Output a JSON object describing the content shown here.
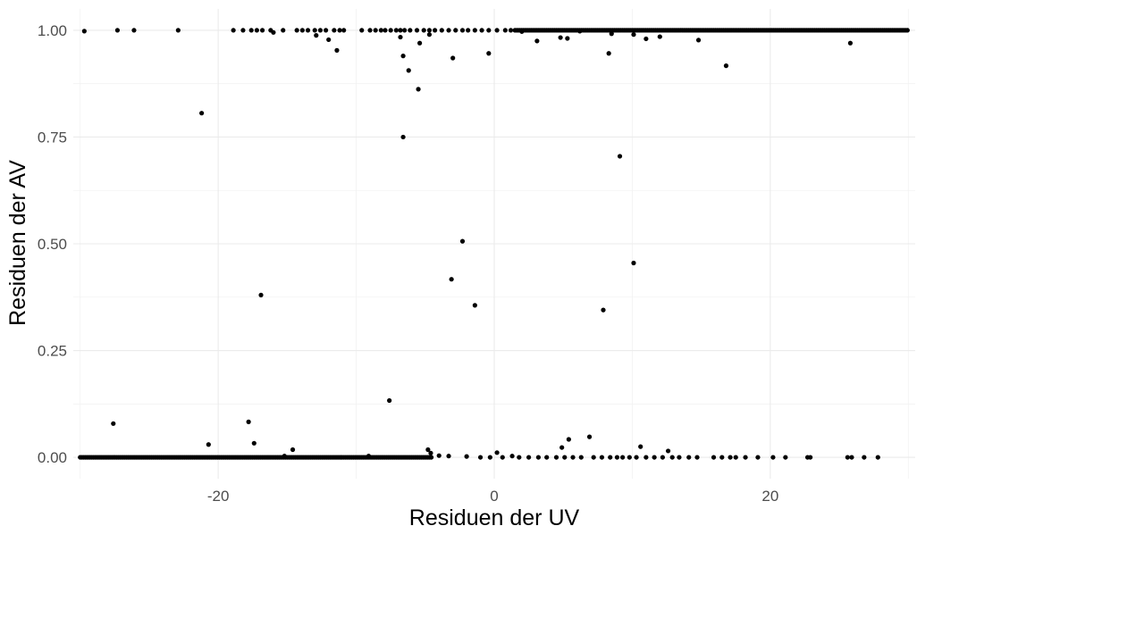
{
  "chart_data": {
    "type": "scatter",
    "title": "",
    "xlabel": "Residuen der UV",
    "ylabel": "Residuen der AV",
    "xlim": [
      -30.5,
      30.5
    ],
    "ylim": [
      -0.05,
      1.05
    ],
    "x_ticks": [
      -20,
      0,
      20
    ],
    "x_tick_labels": [
      "-20",
      "0",
      "20"
    ],
    "y_ticks": [
      0,
      0.25,
      0.5,
      0.75,
      1
    ],
    "y_tick_labels": [
      "0.00",
      "0.25",
      "0.50",
      "0.75",
      "1.00"
    ],
    "grid": true,
    "theme": "minimal",
    "point_color": "#000000",
    "dense_bands": [
      {
        "y": 0,
        "x_from": -30,
        "x_to": -4.5
      },
      {
        "y": 1,
        "x_from": 1.5,
        "x_to": 30
      }
    ],
    "points": [
      [
        -29.7,
        0.998
      ],
      [
        -27.3,
        1.0
      ],
      [
        -26.1,
        1.0
      ],
      [
        -22.9,
        1.0
      ],
      [
        -18.9,
        1.0
      ],
      [
        -18.2,
        1.0
      ],
      [
        -17.6,
        1.0
      ],
      [
        -17.2,
        1.0
      ],
      [
        -16.8,
        1.0
      ],
      [
        -16.2,
        1.0
      ],
      [
        -16.0,
        0.995
      ],
      [
        -15.3,
        1.0
      ],
      [
        -14.3,
        1.0
      ],
      [
        -13.9,
        1.0
      ],
      [
        -13.5,
        1.0
      ],
      [
        -13.0,
        1.0
      ],
      [
        -12.6,
        1.0
      ],
      [
        -12.2,
        1.0
      ],
      [
        -11.6,
        1.0
      ],
      [
        -11.2,
        1.0
      ],
      [
        -10.9,
        1.0
      ],
      [
        -9.6,
        1.0
      ],
      [
        -9.0,
        1.0
      ],
      [
        -8.6,
        1.0
      ],
      [
        -8.2,
        1.0
      ],
      [
        -7.9,
        1.0
      ],
      [
        -7.5,
        1.0
      ],
      [
        -7.1,
        1.0
      ],
      [
        -6.8,
        1.0
      ],
      [
        -6.5,
        1.0
      ],
      [
        -6.1,
        1.0
      ],
      [
        -5.6,
        1.0
      ],
      [
        -5.1,
        1.0
      ],
      [
        -4.7,
        1.0
      ],
      [
        -4.3,
        1.0
      ],
      [
        -3.8,
        1.0
      ],
      [
        -3.3,
        1.0
      ],
      [
        -2.8,
        1.0
      ],
      [
        -2.3,
        1.0
      ],
      [
        -1.9,
        1.0
      ],
      [
        -1.4,
        1.0
      ],
      [
        -0.9,
        1.0
      ],
      [
        -0.4,
        1.0
      ],
      [
        0.2,
        1.0
      ],
      [
        0.8,
        1.0
      ],
      [
        1.2,
        1.0
      ],
      [
        -12.9,
        0.988
      ],
      [
        -12.0,
        0.978
      ],
      [
        -11.4,
        0.953
      ],
      [
        -6.8,
        0.984
      ],
      [
        -4.7,
        0.99
      ],
      [
        -5.4,
        0.97
      ],
      [
        -6.6,
        0.94
      ],
      [
        -6.2,
        0.906
      ],
      [
        -5.5,
        0.862
      ],
      [
        -3.0,
        0.935
      ],
      [
        -0.4,
        0.946
      ],
      [
        3.1,
        0.975
      ],
      [
        4.8,
        0.983
      ],
      [
        5.3,
        0.981
      ],
      [
        8.3,
        0.946
      ],
      [
        8.5,
        0.992
      ],
      [
        10.1,
        0.99
      ],
      [
        11.0,
        0.98
      ],
      [
        12.0,
        0.985
      ],
      [
        14.8,
        0.977
      ],
      [
        16.8,
        0.917
      ],
      [
        25.8,
        0.97
      ],
      [
        2.0,
        0.997
      ],
      [
        6.2,
        0.998
      ],
      [
        -21.2,
        0.806
      ],
      [
        -6.6,
        0.75
      ],
      [
        9.1,
        0.705
      ],
      [
        -2.3,
        0.506
      ],
      [
        10.1,
        0.455
      ],
      [
        -16.9,
        0.38
      ],
      [
        -3.1,
        0.417
      ],
      [
        -1.4,
        0.356
      ],
      [
        7.9,
        0.345
      ],
      [
        -7.6,
        0.133
      ],
      [
        -27.6,
        0.079
      ],
      [
        -17.8,
        0.083
      ],
      [
        -17.4,
        0.033
      ],
      [
        -20.7,
        0.03
      ],
      [
        -14.6,
        0.018
      ],
      [
        -4.8,
        0.018
      ],
      [
        -4.6,
        0.01
      ],
      [
        0.2,
        0.011
      ],
      [
        4.9,
        0.023
      ],
      [
        5.4,
        0.042
      ],
      [
        6.9,
        0.048
      ],
      [
        10.6,
        0.025
      ],
      [
        12.6,
        0.015
      ],
      [
        1.3,
        0.003
      ],
      [
        -15.2,
        0.003
      ],
      [
        -9.1,
        0.003
      ],
      [
        -4.0,
        0.004
      ],
      [
        -3.3,
        0.003
      ],
      [
        -2.0,
        0.002
      ],
      [
        -1.0,
        0.0
      ],
      [
        -0.3,
        0.0
      ],
      [
        0.6,
        0.0
      ],
      [
        1.8,
        0.0
      ],
      [
        2.5,
        0.0
      ],
      [
        3.2,
        0.0
      ],
      [
        3.8,
        0.0
      ],
      [
        4.5,
        0.0
      ],
      [
        5.1,
        0.0
      ],
      [
        5.7,
        0.0
      ],
      [
        6.3,
        0.0
      ],
      [
        7.2,
        0.0
      ],
      [
        7.8,
        0.0
      ],
      [
        8.4,
        0.0
      ],
      [
        8.9,
        0.0
      ],
      [
        9.3,
        0.0
      ],
      [
        9.8,
        0.0
      ],
      [
        10.3,
        0.0
      ],
      [
        11.0,
        0.0
      ],
      [
        11.6,
        0.0
      ],
      [
        12.2,
        0.0
      ],
      [
        12.9,
        0.0
      ],
      [
        13.4,
        0.0
      ],
      [
        14.1,
        0.0
      ],
      [
        14.7,
        0.0
      ],
      [
        15.9,
        0.0
      ],
      [
        16.5,
        0.0
      ],
      [
        17.1,
        0.0
      ],
      [
        17.5,
        0.0
      ],
      [
        18.2,
        0.0
      ],
      [
        19.1,
        0.0
      ],
      [
        20.2,
        0.0
      ],
      [
        21.1,
        0.0
      ],
      [
        22.7,
        0.0
      ],
      [
        22.9,
        0.0
      ],
      [
        25.6,
        0.0
      ],
      [
        25.9,
        0.0
      ],
      [
        26.8,
        0.0
      ],
      [
        27.8,
        0.0
      ]
    ]
  }
}
